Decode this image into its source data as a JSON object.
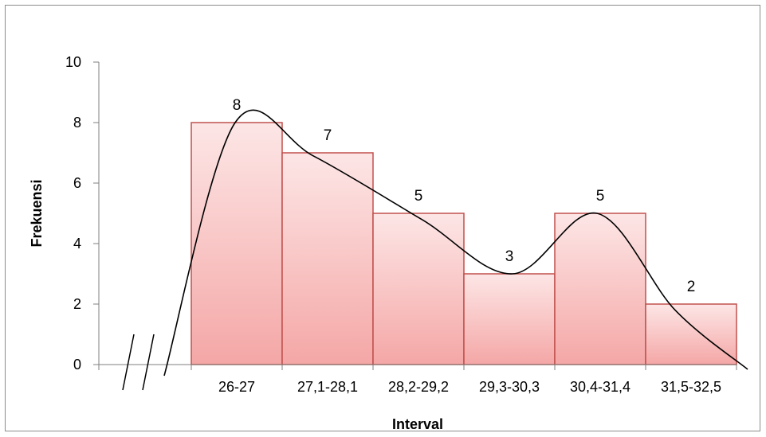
{
  "chart_data": {
    "type": "bar",
    "title": "",
    "xlabel": "Interval",
    "ylabel": "Frekuensi",
    "categories": [
      "26-27",
      "27,1-28,1",
      "28,2-29,2",
      "29,3-30,3",
      "30,4-31,4",
      "31,5-32,5"
    ],
    "values": [
      8,
      7,
      5,
      3,
      5,
      2
    ],
    "data_labels": [
      "8",
      "7",
      "5",
      "3",
      "5",
      "2"
    ],
    "ylim": [
      0,
      10
    ],
    "y_ticks": [
      "0",
      "2",
      "4",
      "6",
      "8",
      "10"
    ],
    "grid": false,
    "legend": "none",
    "bar_gap": 0,
    "overlay": "smooth frequency curve (polygon) through bar tops",
    "axis_break": "double slash break marks on x-axis left of first bar",
    "colors": {
      "bar_fill_top": "#fde6e6",
      "bar_fill_bottom": "#f4a7a6",
      "bar_border": "#c0504d",
      "curve": "#000000",
      "axis": "#7f7f7f"
    }
  }
}
